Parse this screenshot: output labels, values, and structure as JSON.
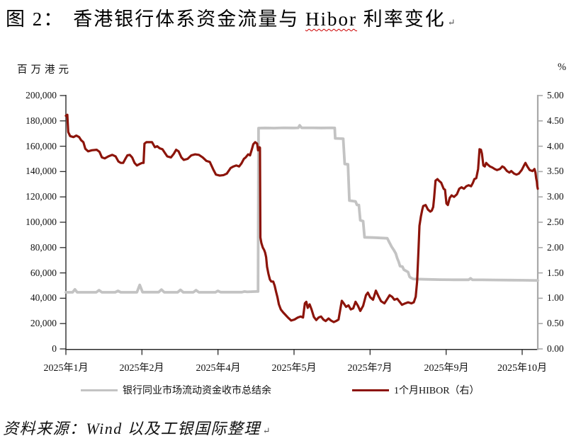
{
  "title": {
    "figure_label": "图 2：",
    "text_before": "香港银行体系资金流量与 ",
    "highlighted_term": "Hibor",
    "text_after": " 利率变化",
    "paragraph_mark": "↵"
  },
  "source_note": {
    "text": "资料来源：Wind 以及工银国际整理",
    "paragraph_mark": "↵"
  },
  "colors": {
    "hibor_line": "#8c140a",
    "balance_line": "#c3c3c3",
    "axis_left": "#2b2b2b",
    "axis_right": "#a8a8a8",
    "spellcheck_underline": "#cc0000"
  },
  "chart_data": {
    "type": "line",
    "title": "香港银行体系资金流量与Hibor利率变化",
    "left_axis": {
      "title": "百万港元",
      "min": 0,
      "max": 200000,
      "tick_step": 20000,
      "tick_labels": [
        "200,000",
        "180,000",
        "160,000",
        "140,000",
        "120,000",
        "100,000",
        "80,000",
        "60,000",
        "40,000",
        "20,000",
        "0"
      ]
    },
    "right_axis": {
      "title": "%",
      "min": 0,
      "max": 5,
      "tick_step": 0.5,
      "tick_labels": [
        "5.00",
        "4.50",
        "4.00",
        "3.50",
        "3.00",
        "2.50",
        "2.00",
        "1.50",
        "1.00",
        "0.50",
        "0.00"
      ]
    },
    "x_axis": {
      "tick_labels": [
        "2025年1月",
        "2025年2月",
        "2025年4月",
        "2025年5月",
        "2025年7月",
        "2025年9月",
        "2025年10月"
      ]
    },
    "legend": [
      {
        "label": "银行同业市场流动资金收市总结余",
        "color": "#c3c3c3",
        "axis": "left"
      },
      {
        "label": "1个月HIBOR（右）",
        "color": "#8c140a",
        "axis": "right"
      }
    ],
    "series": [
      {
        "name": "银行同业市场流动资金收市总结余",
        "axis": "left",
        "color": "#c3c3c3",
        "width": 3.8,
        "points": [
          [
            0,
            44700
          ],
          [
            1.4,
            44700
          ],
          [
            1.9,
            47000
          ],
          [
            2.4,
            44700
          ],
          [
            6.4,
            44700
          ],
          [
            7.0,
            46300
          ],
          [
            7.6,
            44700
          ],
          [
            10.4,
            44700
          ],
          [
            11.0,
            45800
          ],
          [
            11.6,
            44700
          ],
          [
            15.0,
            44700
          ],
          [
            15.6,
            50500
          ],
          [
            16.2,
            44800
          ],
          [
            19.6,
            44800
          ],
          [
            20.2,
            46800
          ],
          [
            20.8,
            44700
          ],
          [
            23.6,
            44700
          ],
          [
            24.2,
            46600
          ],
          [
            24.8,
            44700
          ],
          [
            26.9,
            44700
          ],
          [
            27.5,
            46300
          ],
          [
            28.1,
            44700
          ],
          [
            31.6,
            44700
          ],
          [
            32.1,
            45800
          ],
          [
            32.7,
            44800
          ],
          [
            37.2,
            44800
          ],
          [
            37.7,
            45300
          ],
          [
            38.3,
            45000
          ],
          [
            40.2,
            45300
          ],
          [
            40.6,
            45300
          ],
          [
            40.7,
            174300
          ],
          [
            42.0,
            174400
          ],
          [
            44.0,
            174300
          ],
          [
            46.0,
            174500
          ],
          [
            48.0,
            174400
          ],
          [
            49.1,
            174500
          ],
          [
            49.4,
            176500
          ],
          [
            49.8,
            174500
          ],
          [
            52.0,
            174500
          ],
          [
            54.0,
            174400
          ],
          [
            56.0,
            174500
          ],
          [
            56.8,
            174400
          ],
          [
            56.9,
            166200
          ],
          [
            58.6,
            165900
          ],
          [
            58.9,
            146000
          ],
          [
            59.6,
            145700
          ],
          [
            59.9,
            117100
          ],
          [
            61.2,
            116400
          ],
          [
            61.5,
            113700
          ],
          [
            61.9,
            113500
          ],
          [
            62.2,
            101500
          ],
          [
            62.8,
            100900
          ],
          [
            63.1,
            88100
          ],
          [
            65.0,
            87900
          ],
          [
            67.9,
            87300
          ],
          [
            68.3,
            84400
          ],
          [
            68.8,
            80800
          ],
          [
            69.3,
            78000
          ],
          [
            69.7,
            75300
          ],
          [
            70.0,
            71600
          ],
          [
            70.3,
            68900
          ],
          [
            70.6,
            65300
          ],
          [
            71.1,
            65000
          ],
          [
            71.4,
            62500
          ],
          [
            71.9,
            61500
          ],
          [
            72.3,
            60600
          ],
          [
            72.6,
            57000
          ],
          [
            72.9,
            56100
          ],
          [
            73.4,
            55200
          ],
          [
            76.0,
            54900
          ],
          [
            79.0,
            54700
          ],
          [
            82.0,
            54600
          ],
          [
            85.1,
            54600
          ],
          [
            85.5,
            55700
          ],
          [
            85.9,
            54600
          ],
          [
            88.0,
            54500
          ],
          [
            91.0,
            54400
          ],
          [
            94.0,
            54300
          ],
          [
            97.0,
            54200
          ],
          [
            99.7,
            54000
          ]
        ]
      },
      {
        "name": "1个月HIBOR（右）",
        "axis": "right",
        "color": "#8c140a",
        "width": 3.2,
        "points": [
          [
            0,
            4.6
          ],
          [
            0.3,
            4.62
          ],
          [
            0.5,
            4.28
          ],
          [
            0.9,
            4.2
          ],
          [
            1.6,
            4.18
          ],
          [
            2.2,
            4.21
          ],
          [
            2.8,
            4.18
          ],
          [
            3.2,
            4.12
          ],
          [
            3.7,
            4.08
          ],
          [
            4.1,
            3.95
          ],
          [
            4.7,
            3.9
          ],
          [
            5.5,
            3.92
          ],
          [
            6.5,
            3.93
          ],
          [
            7.1,
            3.89
          ],
          [
            7.6,
            3.78
          ],
          [
            8.2,
            3.76
          ],
          [
            9.0,
            3.8
          ],
          [
            9.8,
            3.83
          ],
          [
            10.5,
            3.8
          ],
          [
            11.1,
            3.7
          ],
          [
            11.6,
            3.67
          ],
          [
            12.1,
            3.67
          ],
          [
            12.5,
            3.74
          ],
          [
            13.0,
            3.82
          ],
          [
            13.5,
            3.83
          ],
          [
            14.0,
            3.78
          ],
          [
            14.5,
            3.67
          ],
          [
            15.0,
            3.62
          ],
          [
            15.6,
            3.65
          ],
          [
            16.1,
            3.67
          ],
          [
            16.4,
            3.67
          ],
          [
            16.6,
            4.05
          ],
          [
            17.0,
            4.08
          ],
          [
            18.2,
            4.08
          ],
          [
            18.8,
            3.98
          ],
          [
            19.3,
            4.0
          ],
          [
            19.8,
            3.96
          ],
          [
            20.4,
            3.94
          ],
          [
            20.9,
            3.87
          ],
          [
            21.4,
            3.8
          ],
          [
            22.2,
            3.78
          ],
          [
            22.8,
            3.85
          ],
          [
            23.3,
            3.93
          ],
          [
            23.8,
            3.9
          ],
          [
            24.4,
            3.78
          ],
          [
            24.9,
            3.73
          ],
          [
            25.7,
            3.75
          ],
          [
            26.5,
            3.82
          ],
          [
            27.3,
            3.84
          ],
          [
            28.1,
            3.83
          ],
          [
            28.9,
            3.78
          ],
          [
            29.7,
            3.71
          ],
          [
            30.4,
            3.69
          ],
          [
            31.2,
            3.53
          ],
          [
            31.7,
            3.44
          ],
          [
            32.5,
            3.42
          ],
          [
            33.3,
            3.43
          ],
          [
            34.0,
            3.46
          ],
          [
            34.8,
            3.57
          ],
          [
            35.4,
            3.6
          ],
          [
            36.0,
            3.62
          ],
          [
            36.6,
            3.6
          ],
          [
            37.1,
            3.66
          ],
          [
            37.6,
            3.75
          ],
          [
            38.0,
            3.78
          ],
          [
            38.5,
            3.84
          ],
          [
            38.9,
            3.82
          ],
          [
            39.3,
            3.94
          ],
          [
            39.6,
            4.04
          ],
          [
            40.0,
            4.08
          ],
          [
            40.4,
            4.05
          ],
          [
            40.6,
            3.92
          ],
          [
            40.9,
            3.98
          ],
          [
            41.0,
            3.97
          ],
          [
            41.1,
            2.2
          ],
          [
            41.3,
            2.09
          ],
          [
            41.6,
            2.0
          ],
          [
            41.9,
            1.95
          ],
          [
            42.1,
            1.9
          ],
          [
            42.3,
            1.81
          ],
          [
            42.5,
            1.62
          ],
          [
            42.8,
            1.48
          ],
          [
            43.1,
            1.37
          ],
          [
            43.4,
            1.33
          ],
          [
            43.8,
            1.33
          ],
          [
            44.1,
            1.25
          ],
          [
            44.4,
            1.13
          ],
          [
            44.7,
            1.02
          ],
          [
            45.0,
            0.88
          ],
          [
            45.4,
            0.78
          ],
          [
            45.9,
            0.72
          ],
          [
            46.4,
            0.67
          ],
          [
            46.9,
            0.62
          ],
          [
            47.6,
            0.56
          ],
          [
            48.3,
            0.58
          ],
          [
            49.0,
            0.62
          ],
          [
            49.6,
            0.64
          ],
          [
            50.1,
            0.62
          ],
          [
            50.5,
            0.9
          ],
          [
            50.8,
            0.93
          ],
          [
            51.1,
            0.81
          ],
          [
            51.5,
            0.88
          ],
          [
            51.9,
            0.78
          ],
          [
            52.4,
            0.63
          ],
          [
            52.9,
            0.57
          ],
          [
            53.4,
            0.62
          ],
          [
            53.9,
            0.64
          ],
          [
            54.4,
            0.58
          ],
          [
            54.9,
            0.55
          ],
          [
            55.5,
            0.6
          ],
          [
            56.0,
            0.56
          ],
          [
            56.6,
            0.53
          ],
          [
            57.1,
            0.55
          ],
          [
            57.6,
            0.58
          ],
          [
            58.0,
            0.79
          ],
          [
            58.3,
            0.95
          ],
          [
            58.7,
            0.9
          ],
          [
            59.2,
            0.83
          ],
          [
            59.7,
            0.86
          ],
          [
            60.2,
            0.78
          ],
          [
            60.7,
            0.8
          ],
          [
            61.2,
            0.93
          ],
          [
            61.7,
            0.85
          ],
          [
            62.2,
            0.75
          ],
          [
            62.8,
            0.85
          ],
          [
            63.4,
            1.06
          ],
          [
            63.8,
            1.11
          ],
          [
            64.3,
            1.02
          ],
          [
            64.9,
            0.97
          ],
          [
            65.5,
            1.15
          ],
          [
            66.1,
            1.03
          ],
          [
            66.6,
            0.94
          ],
          [
            67.3,
            0.9
          ],
          [
            67.8,
            0.97
          ],
          [
            68.4,
            1.06
          ],
          [
            68.9,
            1.03
          ],
          [
            69.4,
            0.97
          ],
          [
            70.0,
            0.99
          ],
          [
            70.6,
            0.92
          ],
          [
            71.0,
            0.87
          ],
          [
            71.7,
            0.9
          ],
          [
            72.3,
            0.92
          ],
          [
            73.0,
            0.9
          ],
          [
            73.5,
            0.92
          ],
          [
            73.9,
            1.03
          ],
          [
            74.2,
            1.33
          ],
          [
            74.5,
            1.97
          ],
          [
            74.7,
            2.43
          ],
          [
            75.0,
            2.61
          ],
          [
            75.3,
            2.75
          ],
          [
            75.5,
            2.82
          ],
          [
            76.0,
            2.84
          ],
          [
            76.5,
            2.75
          ],
          [
            77.0,
            2.71
          ],
          [
            77.3,
            2.73
          ],
          [
            77.6,
            2.8
          ],
          [
            77.8,
            2.98
          ],
          [
            78.1,
            3.32
          ],
          [
            78.5,
            3.35
          ],
          [
            78.8,
            3.32
          ],
          [
            79.3,
            3.28
          ],
          [
            79.8,
            3.16
          ],
          [
            80.1,
            3.14
          ],
          [
            80.4,
            2.87
          ],
          [
            80.7,
            2.84
          ],
          [
            81.1,
            2.98
          ],
          [
            81.5,
            3.03
          ],
          [
            82.0,
            3.0
          ],
          [
            82.6,
            3.05
          ],
          [
            83.1,
            3.16
          ],
          [
            83.6,
            3.19
          ],
          [
            84.1,
            3.16
          ],
          [
            84.6,
            3.21
          ],
          [
            85.1,
            3.23
          ],
          [
            85.6,
            3.21
          ],
          [
            86.0,
            3.28
          ],
          [
            86.3,
            3.35
          ],
          [
            86.7,
            3.37
          ],
          [
            87.1,
            3.55
          ],
          [
            87.4,
            3.94
          ],
          [
            87.7,
            3.93
          ],
          [
            87.9,
            3.85
          ],
          [
            88.2,
            3.62
          ],
          [
            88.5,
            3.6
          ],
          [
            88.8,
            3.67
          ],
          [
            89.1,
            3.64
          ],
          [
            89.6,
            3.6
          ],
          [
            90.1,
            3.58
          ],
          [
            90.6,
            3.55
          ],
          [
            91.1,
            3.53
          ],
          [
            91.7,
            3.55
          ],
          [
            92.2,
            3.6
          ],
          [
            92.6,
            3.58
          ],
          [
            93.2,
            3.51
          ],
          [
            93.7,
            3.48
          ],
          [
            94.1,
            3.51
          ],
          [
            94.7,
            3.46
          ],
          [
            95.2,
            3.44
          ],
          [
            95.7,
            3.46
          ],
          [
            96.3,
            3.53
          ],
          [
            96.8,
            3.62
          ],
          [
            97.1,
            3.67
          ],
          [
            97.5,
            3.6
          ],
          [
            98.0,
            3.53
          ],
          [
            98.6,
            3.51
          ],
          [
            99.0,
            3.55
          ],
          [
            99.2,
            3.48
          ],
          [
            99.35,
            3.37
          ],
          [
            99.5,
            3.3
          ],
          [
            99.6,
            3.21
          ],
          [
            99.7,
            3.16
          ]
        ]
      }
    ],
    "layout": {
      "grid": false,
      "legend_position": "bottom"
    }
  }
}
